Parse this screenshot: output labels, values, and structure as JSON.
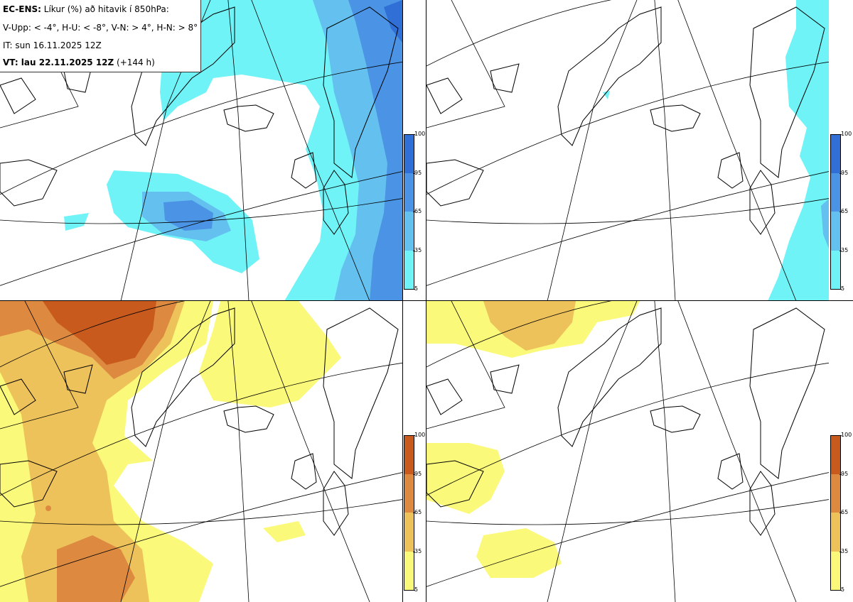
{
  "info": {
    "model": "EC-ENS:",
    "desc": "Líkur (%) að hitavik í 850hPa:",
    "thresholds": "V-Upp: < -4°, H-U: < -8°, V-N: > 4°, H-N: > 8°",
    "init_time": "IT: sun 16.11.2025 12Z",
    "valid_label": "VT: lau 22.11.2025 12Z",
    "valid_hours": "(+144 h)"
  },
  "colorbars": {
    "ticks": [
      "100",
      "95",
      "65",
      "35",
      "5"
    ],
    "cold_colors": [
      "#2f6fd6",
      "#4b93e4",
      "#64c0ee",
      "#6ff3f7"
    ],
    "warm_colors": [
      "#c85a1e",
      "#dd8a40",
      "#eec25a",
      "#fbf97a"
    ]
  },
  "panels": [
    {
      "id": "top-left",
      "variable": "cold anomaly < -4°"
    },
    {
      "id": "top-right",
      "variable": "cold anomaly < -8°"
    },
    {
      "id": "bottom-left",
      "variable": "warm anomaly > 4°"
    },
    {
      "id": "bottom-right",
      "variable": "warm anomaly > 8°"
    }
  ]
}
